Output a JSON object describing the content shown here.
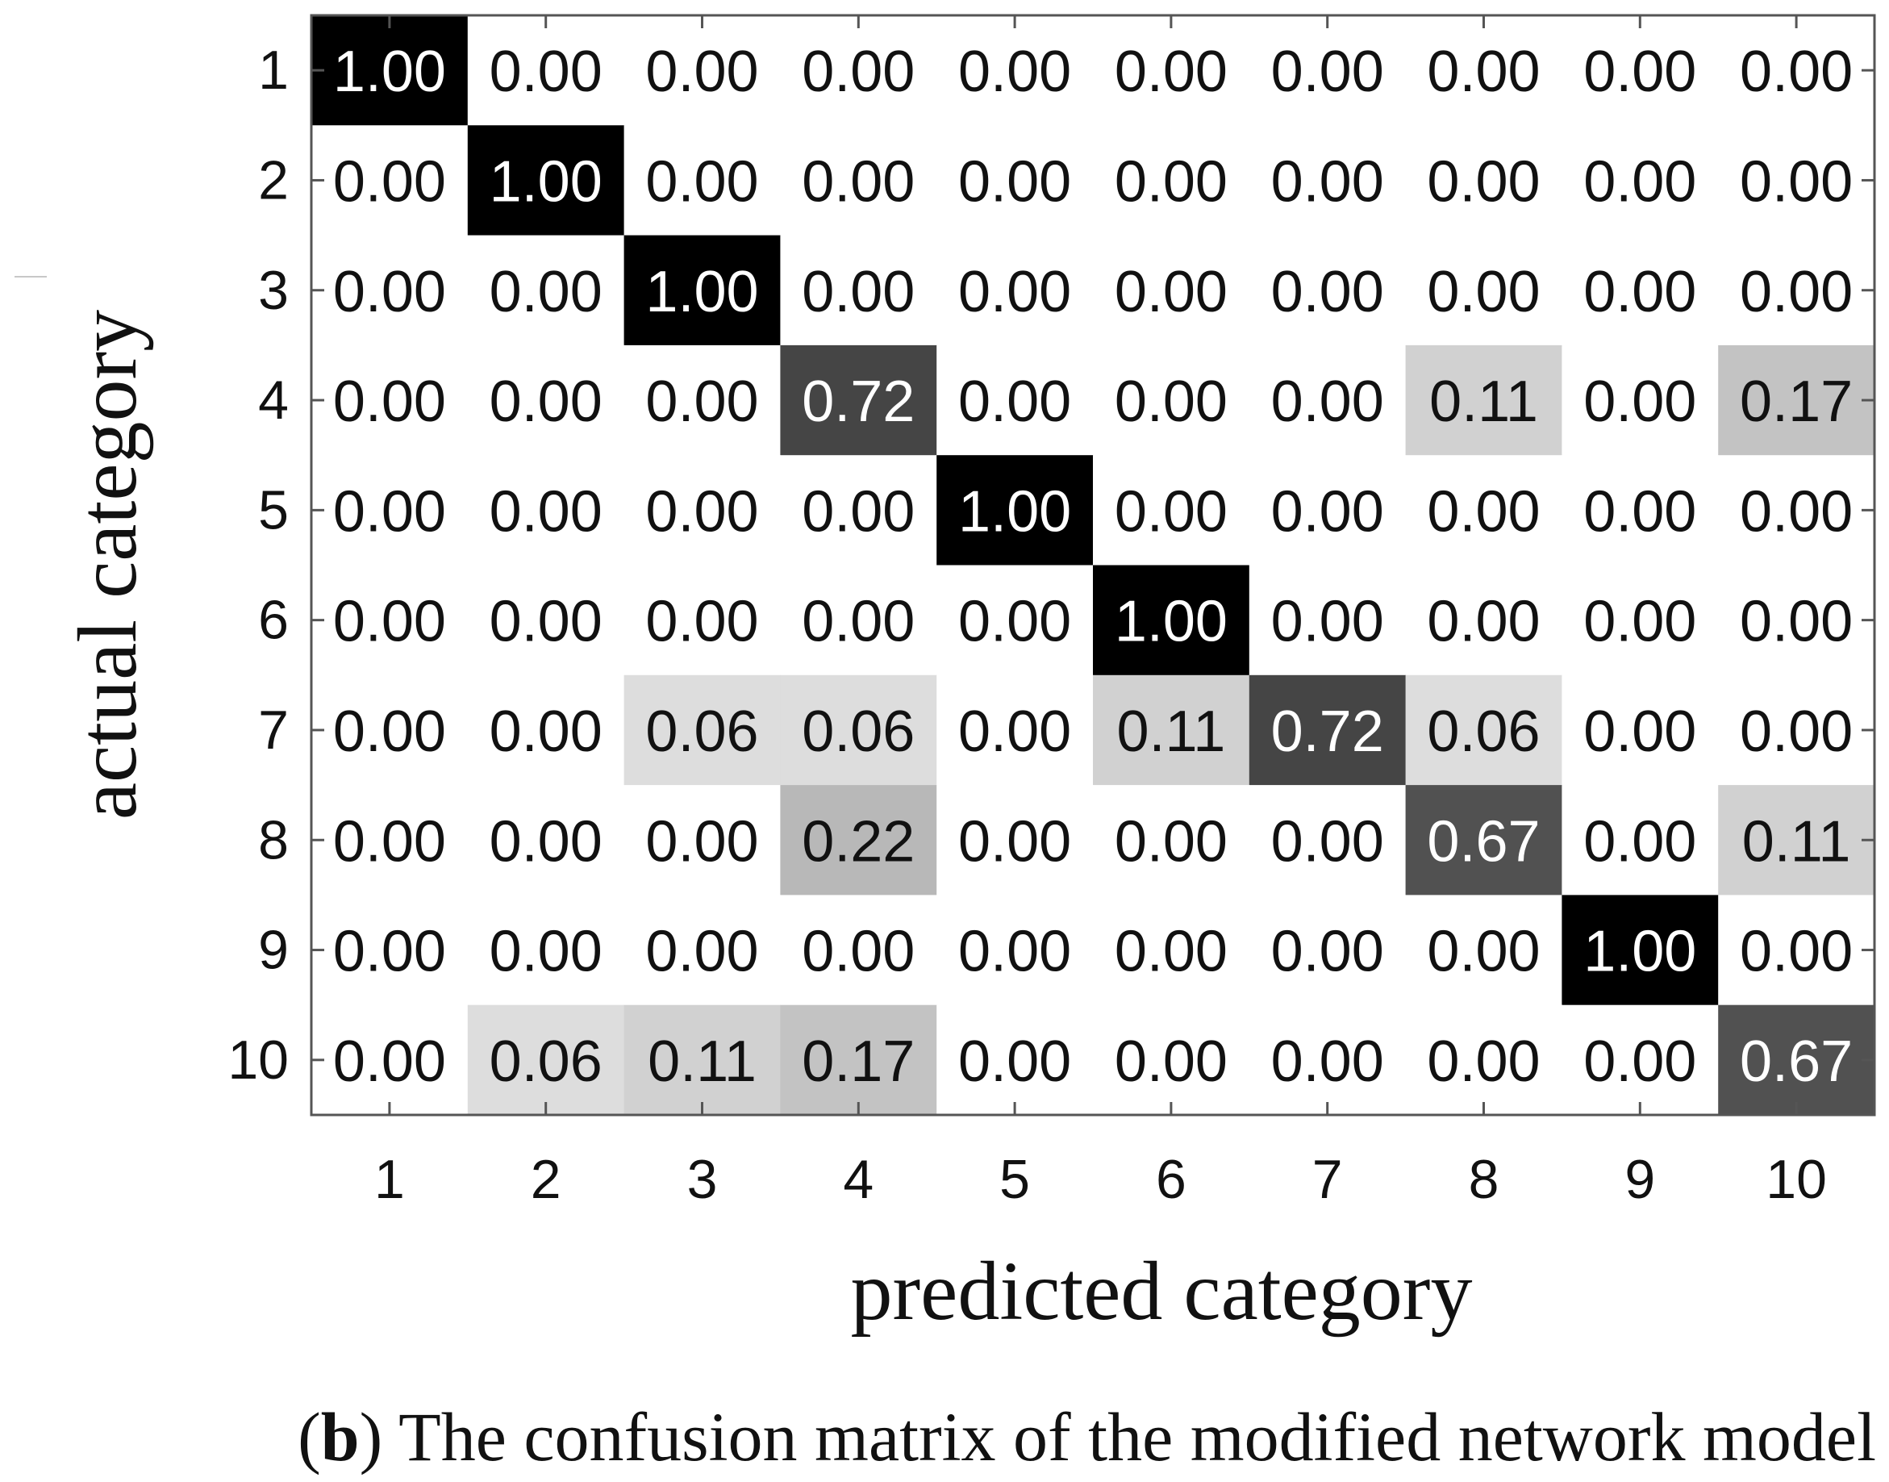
{
  "chart_data": {
    "type": "heatmap",
    "title": "",
    "xlabel": "predicted category",
    "ylabel": "actual category",
    "x_categories": [
      "1",
      "2",
      "3",
      "4",
      "5",
      "6",
      "7",
      "8",
      "9",
      "10"
    ],
    "y_categories": [
      "1",
      "2",
      "3",
      "4",
      "5",
      "6",
      "7",
      "8",
      "9",
      "10"
    ],
    "value_range": [
      0,
      1
    ],
    "colormap": "white-to-black (grayscale)",
    "grid": false,
    "values": [
      [
        1.0,
        0.0,
        0.0,
        0.0,
        0.0,
        0.0,
        0.0,
        0.0,
        0.0,
        0.0
      ],
      [
        0.0,
        1.0,
        0.0,
        0.0,
        0.0,
        0.0,
        0.0,
        0.0,
        0.0,
        0.0
      ],
      [
        0.0,
        0.0,
        1.0,
        0.0,
        0.0,
        0.0,
        0.0,
        0.0,
        0.0,
        0.0
      ],
      [
        0.0,
        0.0,
        0.0,
        0.72,
        0.0,
        0.0,
        0.0,
        0.11,
        0.0,
        0.17
      ],
      [
        0.0,
        0.0,
        0.0,
        0.0,
        1.0,
        0.0,
        0.0,
        0.0,
        0.0,
        0.0
      ],
      [
        0.0,
        0.0,
        0.0,
        0.0,
        0.0,
        1.0,
        0.0,
        0.0,
        0.0,
        0.0
      ],
      [
        0.0,
        0.0,
        0.06,
        0.06,
        0.0,
        0.11,
        0.72,
        0.06,
        0.0,
        0.0
      ],
      [
        0.0,
        0.0,
        0.0,
        0.22,
        0.0,
        0.0,
        0.0,
        0.67,
        0.0,
        0.11
      ],
      [
        0.0,
        0.0,
        0.0,
        0.0,
        0.0,
        0.0,
        0.0,
        0.0,
        1.0,
        0.0
      ],
      [
        0.0,
        0.06,
        0.11,
        0.17,
        0.0,
        0.0,
        0.0,
        0.0,
        0.0,
        0.67
      ]
    ]
  },
  "caption": {
    "label": "b",
    "text": "The confusion matrix of the modified network model"
  }
}
